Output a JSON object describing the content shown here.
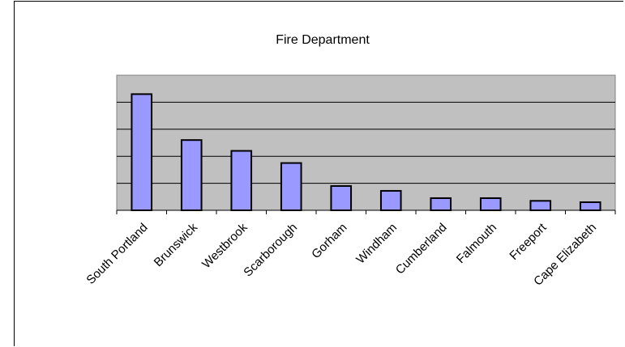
{
  "chart_data": {
    "type": "bar",
    "title": "Fire Department",
    "xlabel": "",
    "ylabel": "",
    "categories": [
      "South Portland",
      "Brunswick",
      "Westbrook",
      "Scarborough",
      "Gorham",
      "Windham",
      "Cumberland",
      "Falmouth",
      "Freeport",
      "Cape Elizabeth"
    ],
    "values": [
      4.3,
      2.6,
      2.2,
      1.75,
      0.9,
      0.72,
      0.45,
      0.45,
      0.35,
      0.3
    ],
    "ylim": [
      0,
      5
    ],
    "y_tick_labels_shown": false,
    "grid": true,
    "legend": "none",
    "colors": {
      "bar_fill": "#9999ff",
      "bar_stroke": "#000000",
      "plot_background": "#c0c0c0",
      "gridline": "#000000"
    }
  }
}
